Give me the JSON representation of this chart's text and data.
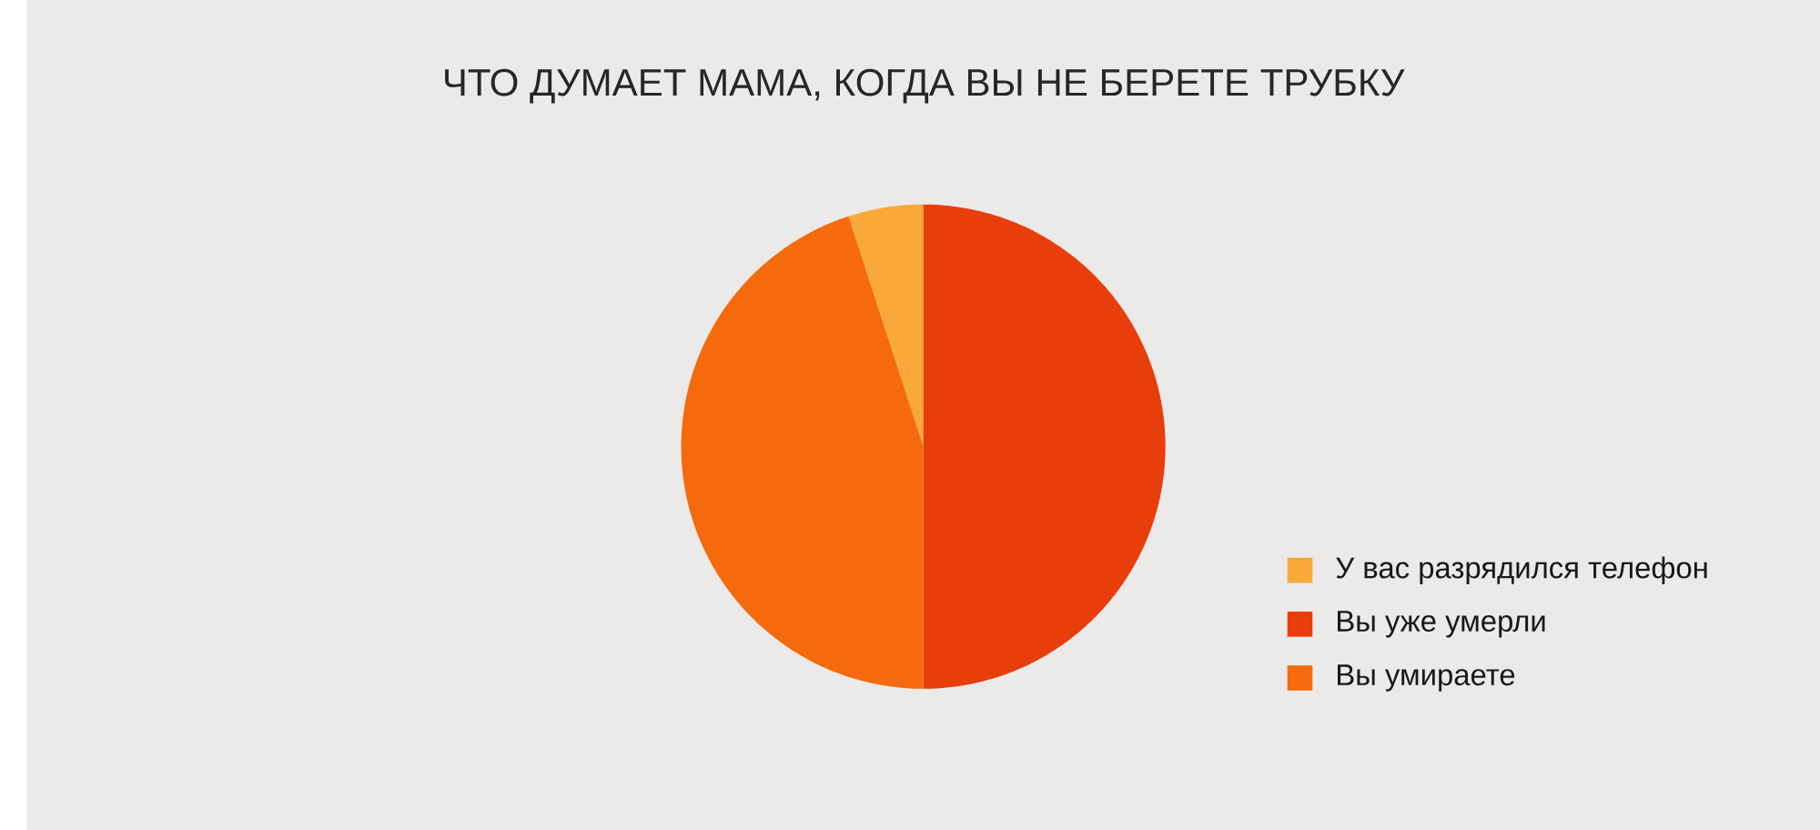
{
  "chart_data": {
    "type": "pie",
    "title": "ЧТО ДУМАЕТ МАМА, КОГДА ВЫ НЕ БЕРЕТЕ ТРУБКУ",
    "categories": [
      "У вас разрядился телефон",
      "Вы уже умерли",
      "Вы умираете"
    ],
    "values": [
      5,
      50,
      45
    ],
    "colors": [
      "#f9a83a",
      "#e83e0c",
      "#f56a0c"
    ],
    "legend": "bottom right"
  }
}
